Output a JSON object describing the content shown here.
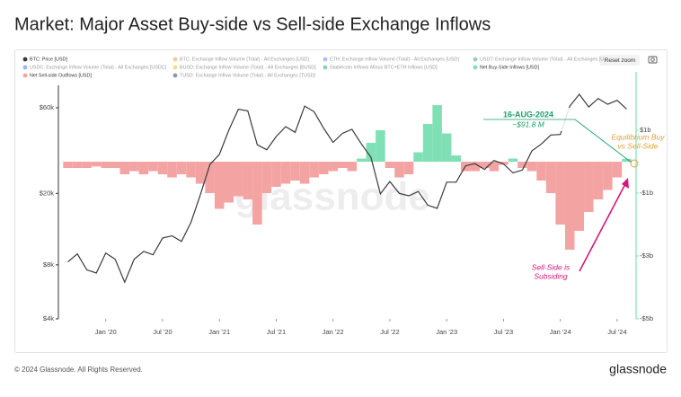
{
  "chart_data": {
    "type": "line",
    "title": "Market: Major Asset Buy-side vs Sell-side Exchange Inflows",
    "reset_button": "Reset zoom",
    "watermark": "glassnode",
    "x": [
      "2019-09",
      "2019-10",
      "2019-11",
      "2019-12",
      "2020-01",
      "2020-02",
      "2020-03",
      "2020-04",
      "2020-05",
      "2020-06",
      "2020-07",
      "2020-08",
      "2020-09",
      "2020-10",
      "2020-11",
      "2020-12",
      "2021-01",
      "2021-02",
      "2021-03",
      "2021-04",
      "2021-05",
      "2021-06",
      "2021-07",
      "2021-08",
      "2021-09",
      "2021-10",
      "2021-11",
      "2021-12",
      "2022-01",
      "2022-02",
      "2022-03",
      "2022-04",
      "2022-05",
      "2022-06",
      "2022-07",
      "2022-08",
      "2022-09",
      "2022-10",
      "2022-11",
      "2022-12",
      "2023-01",
      "2023-02",
      "2023-03",
      "2023-04",
      "2023-05",
      "2023-06",
      "2023-07",
      "2023-08",
      "2023-09",
      "2023-10",
      "2023-11",
      "2023-12",
      "2024-01",
      "2024-02",
      "2024-03",
      "2024-04",
      "2024-05",
      "2024-06",
      "2024-07",
      "2024-08"
    ],
    "xlim": [
      "2019-08",
      "2024-09"
    ],
    "xticks": [
      {
        "value": "2020-01",
        "label": "Jan '20"
      },
      {
        "value": "2020-07",
        "label": "Jul '20"
      },
      {
        "value": "2021-01",
        "label": "Jan '21"
      },
      {
        "value": "2021-07",
        "label": "Jul '21"
      },
      {
        "value": "2022-01",
        "label": "Jan '22"
      },
      {
        "value": "2022-07",
        "label": "Jul '22"
      },
      {
        "value": "2023-01",
        "label": "Jan '23"
      },
      {
        "value": "2023-07",
        "label": "Jul '23"
      },
      {
        "value": "2024-01",
        "label": "Jan '24"
      },
      {
        "value": "2024-07",
        "label": "Jul '24"
      }
    ],
    "ylim": [
      4000,
      80000
    ],
    "log_scale_y": true,
    "yticks": [
      {
        "value": 4000,
        "label": "$4k"
      },
      {
        "value": 8000,
        "label": "$8k"
      },
      {
        "value": 20000,
        "label": "$20k"
      },
      {
        "value": 60000,
        "label": "$60k"
      }
    ],
    "y2lim": [
      -5,
      2.43
    ],
    "y2ticks": [
      {
        "value": 1,
        "label": "$1b"
      },
      {
        "value": -1,
        "label": "-$1b"
      },
      {
        "value": -3,
        "label": "-$3b"
      },
      {
        "value": -5,
        "label": "-$5b"
      }
    ],
    "series": [
      {
        "name": "BTC: Price [USD]",
        "color": "#3a3a3a",
        "kind": "line",
        "values": [
          8300,
          9200,
          7500,
          7200,
          9300,
          8600,
          6400,
          8600,
          9500,
          9100,
          11300,
          11600,
          10800,
          13800,
          19700,
          29000,
          33000,
          45000,
          58800,
          57700,
          37300,
          35000,
          41500,
          47100,
          43800,
          61300,
          57000,
          46300,
          38500,
          43200,
          45500,
          37700,
          31800,
          19900,
          23300,
          20000,
          19400,
          20500,
          17200,
          16500,
          23100,
          23100,
          28500,
          29300,
          27200,
          30500,
          29200,
          26000,
          27000,
          34500,
          37700,
          42300,
          42600,
          61200,
          71300,
          60600,
          67500,
          62700,
          66000,
          59000
        ]
      },
      {
        "name": "BTC: Exchange Inflow Volume (Total) - All Exchanges [USD]",
        "color": "#f7931a",
        "hidden": true
      },
      {
        "name": "ETH: Exchange Inflow Volume (Total) - All Exchanges [USD]",
        "color": "#627eea",
        "hidden": true
      },
      {
        "name": "USDT: Exchange Inflow Volume (Total) - All Exchanges [U...",
        "color": "#26a17b",
        "hidden": true
      },
      {
        "name": "USDC: Exchange Inflow Volume (Total) - All Exchanges [USDC]",
        "color": "#2775ca",
        "hidden": true
      },
      {
        "name": "BUSD: Exchange Inflow Volume (Total) - All Exchanges [BUSD]",
        "color": "#f0b90b",
        "hidden": true
      },
      {
        "name": "Stablecoin Inflows Minus BTC+ETH Inflows [USD]",
        "color": "#1a9e6e",
        "hidden": true
      },
      {
        "name": "Net Buy-Side Inflows [USD]",
        "color": "#7fe0b5",
        "kind": "bar",
        "axis": "y2",
        "values": [
          null,
          null,
          null,
          null,
          null,
          null,
          null,
          null,
          null,
          null,
          null,
          null,
          null,
          null,
          null,
          null,
          null,
          null,
          null,
          null,
          null,
          null,
          null,
          null,
          null,
          null,
          null,
          null,
          null,
          null,
          null,
          0.1,
          0.6,
          1.0,
          null,
          null,
          null,
          0.3,
          1.2,
          1.8,
          0.9,
          0.2,
          null,
          null,
          null,
          null,
          null,
          0.1,
          null,
          null,
          null,
          null,
          null,
          null,
          null,
          null,
          null,
          null,
          null,
          0.0918
        ]
      },
      {
        "name": "Net Sell-side Outflows [USD]",
        "color": "#f4a3a3",
        "kind": "bar",
        "axis": "y2",
        "values": [
          -0.2,
          -0.2,
          -0.2,
          -0.15,
          -0.2,
          -0.2,
          -0.4,
          -0.3,
          -0.4,
          -0.3,
          -0.4,
          -0.5,
          -0.4,
          -0.5,
          -0.7,
          -1.0,
          -1.5,
          -1.3,
          -1.1,
          -1.2,
          -2.0,
          -1.0,
          -0.8,
          -0.7,
          -0.6,
          -0.7,
          -0.5,
          -0.4,
          -0.3,
          -0.2,
          -0.3,
          null,
          null,
          null,
          -0.2,
          -0.5,
          -0.4,
          null,
          null,
          null,
          null,
          null,
          -0.3,
          -0.3,
          -0.2,
          -0.3,
          -0.1,
          null,
          -0.2,
          -0.3,
          -0.6,
          -1.0,
          -2.0,
          -2.8,
          -2.2,
          -1.6,
          -1.2,
          -0.9,
          -0.5,
          null
        ]
      },
      {
        "name": "TUSD: Exchange Inflow Volume (Total) - All Exchanges [TUSD]",
        "color": "#1a2b6b",
        "hidden": true
      }
    ],
    "annotations": {
      "date_box": [
        "16-AUG-2024",
        "~$91.8 M"
      ],
      "equilibrium": [
        "Equilibrium Buy",
        "vs Sell-Side"
      ],
      "subsiding": [
        "Sell-Side is",
        "Subsiding"
      ]
    }
  },
  "footer": {
    "copyright": "© 2024 Glassnode. All Rights Reserved.",
    "logo": "glassnode"
  }
}
